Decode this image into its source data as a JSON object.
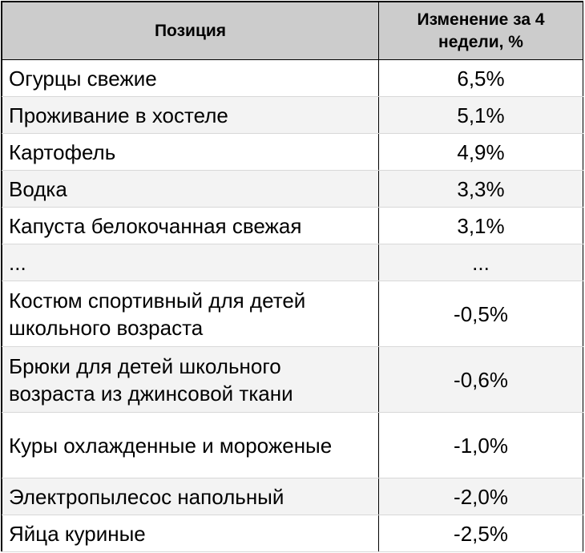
{
  "table": {
    "headers": {
      "position": "Позиция",
      "change": "Изменение за 4 недели, %"
    },
    "rows": [
      {
        "position": "Огурцы свежие",
        "change": "6,5%"
      },
      {
        "position": "Проживание в хостеле",
        "change": "5,1%"
      },
      {
        "position": "Картофель",
        "change": "4,9%"
      },
      {
        "position": "Водка",
        "change": "3,3%"
      },
      {
        "position": "Капуста белокочанная свежая",
        "change": "3,1%"
      },
      {
        "position": "...",
        "change": "..."
      },
      {
        "position": "Костюм спортивный для детей школьного  возраста",
        "change": "-0,5%"
      },
      {
        "position": "Брюки для детей школьного возраста  из джинсовой ткани",
        "change": "-0,6%"
      },
      {
        "position": "Куры охлажденные и мороженые",
        "change": "-1,0%"
      },
      {
        "position": "Электропылесос напольный",
        "change": "-2,0%"
      },
      {
        "position": "Яйца куриные",
        "change": "-2,5%"
      }
    ]
  },
  "colors": {
    "header_bg": "#cccccc",
    "row_shade": "#f3f3f3",
    "row_white": "#ffffff",
    "border": "#000000"
  }
}
